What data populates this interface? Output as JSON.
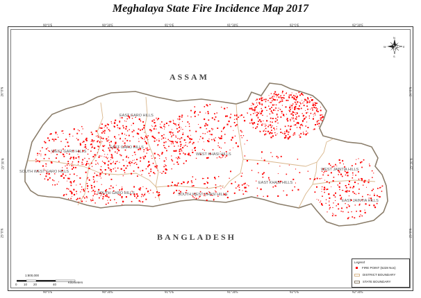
{
  "title": "Meghalaya State Fire Incidence Map 2017",
  "labels": {
    "assam": "ASSAM",
    "bangladesh": "BANGLADESH"
  },
  "districts": [
    "EAST GARO HILLS",
    "WEST GARO HILLS",
    "SOUTH WEST GARO HILLS",
    "EAST GARO HILLS",
    "SOUTH GARO HILLS",
    "WEST KHASI HILLS",
    "SOUTH WEST KHASI HILLS",
    "EAST KHASI HILLS",
    "WEST JAINTIA HILLS",
    "EAST JAINTIA HILLS"
  ],
  "legend": {
    "title": "Legend",
    "fire_point": "FIRE POINT (6228 Nos)",
    "district_boundary": "DISTRICT BOUNDARY",
    "state_boundary": "STATE BOUNDARY",
    "colors": {
      "fire": "#ff0000",
      "district": "#d9b68a",
      "state": "#8a7d6a"
    }
  },
  "scale": {
    "ratio": "1:800,000",
    "ticks": [
      "0",
      "10",
      "20",
      "40"
    ],
    "unit": "Kilometers"
  },
  "compass": {
    "n": "N",
    "s": "S",
    "e": "E",
    "w": "W"
  },
  "graticule": {
    "top": [
      "90°0'E",
      "90°30'E",
      "91°0'E",
      "91°30'E",
      "92°0'E",
      "92°30'E"
    ],
    "left": [
      "26°0'N",
      "25°30'N",
      "25°0'N"
    ]
  }
}
